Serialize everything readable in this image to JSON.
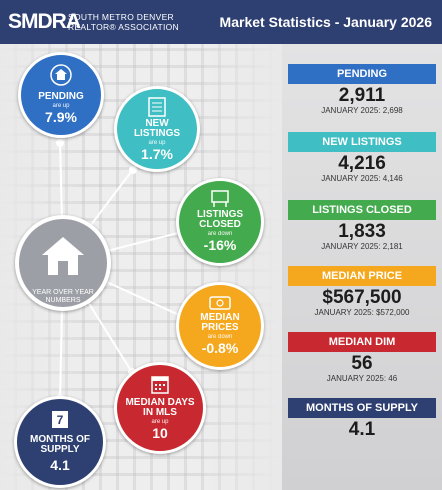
{
  "header": {
    "logo": "SMDRA",
    "logo_line1": "SOUTH METRO DENVER",
    "logo_line2": "REALTOR® ASSOCIATION",
    "title": "Market Statistics - January 2026"
  },
  "hub": {
    "label": "YEAR OVER YEAR NUMBERS",
    "icon": "house-icon"
  },
  "bubbles": {
    "pending": {
      "title": "PENDING",
      "sub": "are up",
      "value": "7.9%",
      "color": "#2f6fc4",
      "icon": "house-search-icon"
    },
    "new_listings": {
      "title": "NEW LISTINGS",
      "sub": "are up",
      "value": "1.7%",
      "color": "#3fbfc4",
      "icon": "listing-document-icon"
    },
    "listings_closed": {
      "title": "LISTINGS CLOSED",
      "sub": "are down",
      "value": "-16%",
      "color": "#43ab4d",
      "icon": "sold-sign-icon"
    },
    "median_prices": {
      "title": "MEDIAN PRICES",
      "sub": "are down",
      "value": "-0.8%",
      "color": "#f5a81e",
      "icon": "money-icon"
    },
    "median_days": {
      "title": "MEDIAN DAYS IN MLS",
      "sub": "are up",
      "value": "10",
      "color": "#c8282f",
      "icon": "calendar-icon"
    },
    "months_supply": {
      "title": "MONTHS OF SUPPLY",
      "value": "4.1",
      "color": "#2e3f72",
      "icon": "calendar-7-icon",
      "icon_number": "7"
    }
  },
  "stats": [
    {
      "label": "PENDING",
      "value": "2,911",
      "prev": "JANUARY 2025: 2,698",
      "color": "#2f6fc4"
    },
    {
      "label": "NEW LISTINGS",
      "value": "4,216",
      "prev": "JANUARY 2025: 4,146",
      "color": "#3fbfc4"
    },
    {
      "label": "LISTINGS CLOSED",
      "value": "1,833",
      "prev": "JANUARY 2025: 2,181",
      "color": "#43ab4d"
    },
    {
      "label": "MEDIAN PRICE",
      "value": "$567,500",
      "prev": "JANUARY 2025: $572,000",
      "color": "#f5a81e"
    },
    {
      "label": "MEDIAN DIM",
      "value": "56",
      "prev": "JANUARY 2025: 46",
      "color": "#c8282f"
    },
    {
      "label": "MONTHS OF SUPPLY",
      "value": "4.1",
      "prev": "",
      "color": "#2e3f72"
    }
  ]
}
